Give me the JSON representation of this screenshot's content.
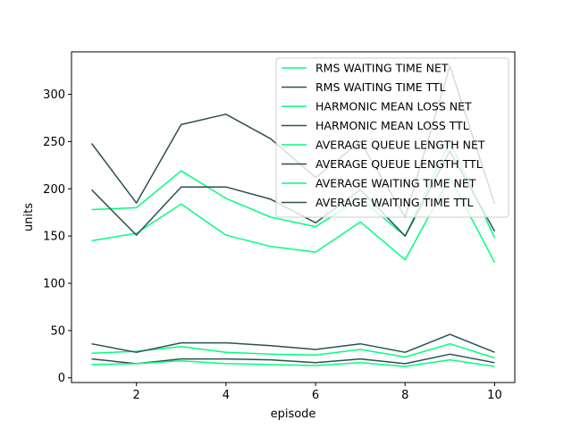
{
  "chart_data": {
    "type": "line",
    "title": "",
    "xlabel": "episode",
    "ylabel": "units",
    "xlim": [
      0.55,
      10.45
    ],
    "ylim": [
      -5,
      345
    ],
    "xticks": [
      2,
      4,
      6,
      8,
      10
    ],
    "yticks": [
      0,
      50,
      100,
      150,
      200,
      250,
      300
    ],
    "grid": false,
    "legend_position": "upper right",
    "x": [
      1,
      2,
      3,
      4,
      5,
      6,
      7,
      8,
      9,
      10
    ],
    "colors": {
      "net": "#00ff7f",
      "ttl": "#2f4f4f"
    },
    "series": [
      {
        "name": "RMS WAITING TIME NET",
        "color": "#00ff7f",
        "values": [
          178,
          180,
          219,
          190,
          170,
          160,
          190,
          150,
          250,
          148
        ]
      },
      {
        "name": "RMS WAITING TIME TTL",
        "color": "#2f4f4f",
        "values": [
          248,
          185,
          268,
          279,
          253,
          212,
          250,
          170,
          330,
          184
        ]
      },
      {
        "name": "HARMONIC MEAN LOSS NET",
        "color": "#00ff7f",
        "values": [
          145,
          153,
          184,
          151,
          139,
          133,
          165,
          125,
          212,
          122
        ]
      },
      {
        "name": "HARMONIC MEAN LOSS TTL",
        "color": "#2f4f4f",
        "values": [
          199,
          151,
          202,
          202,
          189,
          164,
          199,
          150,
          240,
          155
        ]
      },
      {
        "name": "AVERAGE QUEUE LENGTH NET",
        "color": "#00ff7f",
        "values": [
          26,
          28,
          33,
          27,
          25,
          24,
          30,
          22,
          36,
          21
        ]
      },
      {
        "name": "AVERAGE QUEUE LENGTH TTL",
        "color": "#2f4f4f",
        "values": [
          20,
          15,
          20,
          20,
          19,
          16,
          20,
          15,
          25,
          16
        ]
      },
      {
        "name": "AVERAGE WAITING TIME NET",
        "color": "#00ff7f",
        "values": [
          14,
          15,
          18,
          15,
          14,
          13,
          16,
          12,
          19,
          12
        ]
      },
      {
        "name": "AVERAGE WAITING TIME TTL",
        "color": "#2f4f4f",
        "values": [
          36,
          27,
          37,
          37,
          34,
          30,
          36,
          27,
          46,
          27
        ]
      }
    ]
  }
}
